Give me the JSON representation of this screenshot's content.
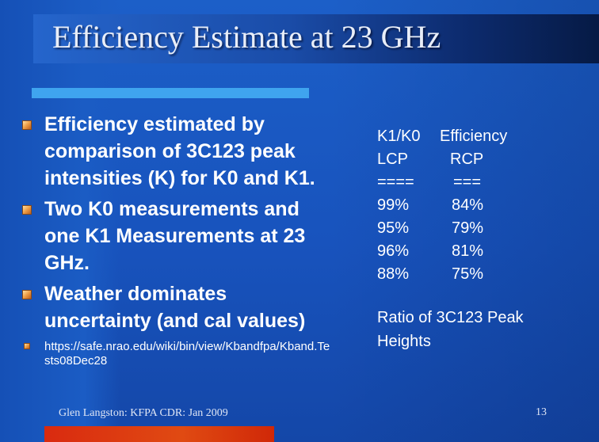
{
  "slide": {
    "title": "Efficiency Estimate at 23 GHz",
    "bullets": [
      {
        "lines": [
          "Efficiency estimated by",
          "comparison of 3C123 peak",
          "intensities (K) for K0 and K1."
        ]
      },
      {
        "lines": [
          "Two K0 measurements and",
          "one K1 Measurements at 23",
          "GHz."
        ]
      },
      {
        "lines": [
          "Weather dominates",
          "uncertainty (and cal values)"
        ]
      }
    ],
    "link": {
      "lines": [
        "https://safe.nrao.edu/wiki/bin/view/Kbandfpa/Kband.Te",
        "sts08Dec28"
      ]
    },
    "table": {
      "col1": [
        "K1/K0",
        "LCP",
        "====",
        "99%",
        "95%",
        "96%",
        "88%"
      ],
      "col2": [
        "Efficiency",
        "RCP",
        "===",
        "84%",
        "79%",
        "81%",
        "75%"
      ]
    },
    "caption": [
      "Ratio of 3C123 Peak",
      "Heights"
    ],
    "footer": "Glen Langston:  KFPA CDR: Jan 2009",
    "page_number": "13"
  },
  "colors": {
    "background": "#1a5bc4",
    "accent_bar": "#3fa4ef",
    "bottom_bar": "#d92a10",
    "bullet": "#ee9d45"
  }
}
